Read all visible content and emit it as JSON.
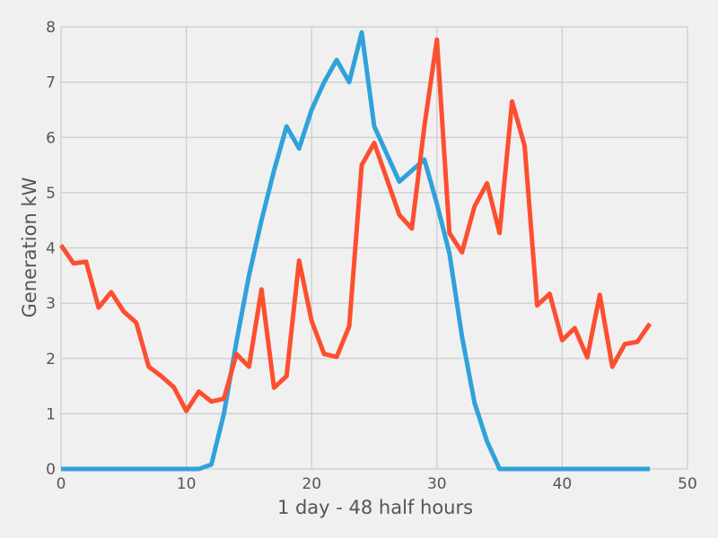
{
  "chart_data": {
    "type": "line",
    "title": "",
    "xlabel": "1 day - 48 half hours",
    "ylabel": "Generation kW",
    "xlim": [
      0,
      50
    ],
    "ylim": [
      0,
      8
    ],
    "xticks": [
      0,
      10,
      20,
      30,
      40,
      50
    ],
    "yticks": [
      0,
      1,
      2,
      3,
      4,
      5,
      6,
      7,
      8
    ],
    "grid": true,
    "x": [
      0,
      1,
      2,
      3,
      4,
      5,
      6,
      7,
      8,
      9,
      10,
      11,
      12,
      13,
      14,
      15,
      16,
      17,
      18,
      19,
      20,
      21,
      22,
      23,
      24,
      25,
      26,
      27,
      28,
      29,
      30,
      31,
      32,
      33,
      34,
      35,
      36,
      37,
      38,
      39,
      40,
      41,
      42,
      43,
      44,
      45,
      46,
      47
    ],
    "series": [
      {
        "color": "#30a2da",
        "values": [
          0,
          0,
          0,
          0,
          0,
          0,
          0,
          0,
          0,
          0,
          0,
          0,
          0.08,
          1.0,
          2.3,
          3.5,
          4.5,
          5.4,
          6.2,
          5.8,
          6.5,
          7.0,
          7.4,
          7.0,
          7.9,
          6.2,
          5.7,
          5.2,
          5.4,
          5.6,
          4.8,
          3.9,
          2.4,
          1.2,
          0.5,
          0,
          0,
          0,
          0,
          0,
          0,
          0,
          0,
          0,
          0,
          0,
          0,
          0
        ]
      },
      {
        "color": "#fc4f30",
        "values": [
          4.05,
          3.72,
          3.75,
          2.92,
          3.2,
          2.85,
          2.65,
          1.85,
          1.68,
          1.48,
          1.05,
          1.4,
          1.22,
          1.27,
          2.08,
          1.85,
          3.25,
          1.47,
          1.68,
          3.77,
          2.68,
          2.08,
          2.03,
          2.58,
          5.5,
          5.9,
          5.25,
          4.6,
          4.35,
          6.2,
          7.77,
          4.27,
          3.92,
          4.75,
          5.17,
          4.27,
          6.65,
          5.85,
          2.96,
          3.17,
          2.33,
          2.55,
          2.02,
          3.15,
          1.85,
          2.26,
          2.3,
          2.63
        ]
      }
    ]
  }
}
